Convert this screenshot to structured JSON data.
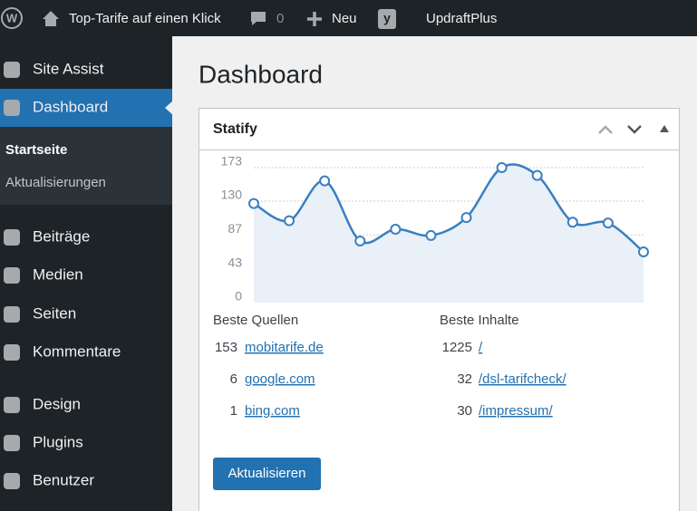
{
  "admin_bar": {
    "site_name": "Top-Tarife auf einen Klick",
    "comments": "0",
    "new": "Neu",
    "plugin": "UpdraftPlus"
  },
  "sidebar": {
    "items_top": [
      "Site Assist",
      "Dashboard"
    ],
    "submenu": [
      "Startseite",
      "Aktualisierungen"
    ],
    "items": [
      "Beiträge",
      "Medien",
      "Seiten",
      "Kommentare",
      "Design",
      "Plugins",
      "Benutzer"
    ]
  },
  "page_title": "Dashboard",
  "widget": {
    "title": "Statify",
    "sources": {
      "heading": "Beste Quellen",
      "rows": [
        {
          "count": 153,
          "label": "mobitarife.de"
        },
        {
          "count": 6,
          "label": "google.com"
        },
        {
          "count": 1,
          "label": "bing.com"
        }
      ]
    },
    "contents": {
      "heading": "Beste Inhalte",
      "rows": [
        {
          "count": 1225,
          "label": "/"
        },
        {
          "count": 32,
          "label": "/dsl-tarifcheck/"
        },
        {
          "count": 30,
          "label": "/impressum/"
        }
      ]
    },
    "button": "Aktualisieren"
  },
  "chart_data": {
    "type": "line",
    "categories": [
      null,
      null,
      null,
      null,
      null,
      null,
      null,
      null,
      null,
      null,
      null,
      null
    ],
    "values": [
      127,
      105,
      156,
      79,
      94,
      86,
      109,
      173,
      163,
      103,
      102,
      65
    ],
    "color": "#3a7fc1",
    "ylim": [
      0,
      173
    ],
    "yticks": [
      0,
      43,
      87,
      130,
      173
    ],
    "grid": true
  }
}
